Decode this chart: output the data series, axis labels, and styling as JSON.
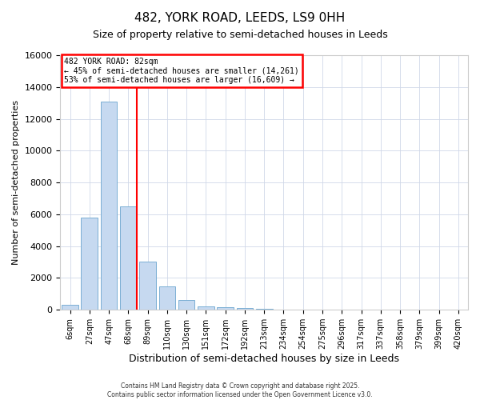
{
  "title": "482, YORK ROAD, LEEDS, LS9 0HH",
  "subtitle": "Size of property relative to semi-detached houses in Leeds",
  "xlabel": "Distribution of semi-detached houses by size in Leeds",
  "ylabel": "Number of semi-detached properties",
  "bin_labels": [
    "6sqm",
    "27sqm",
    "47sqm",
    "68sqm",
    "89sqm",
    "110sqm",
    "130sqm",
    "151sqm",
    "172sqm",
    "192sqm",
    "213sqm",
    "234sqm",
    "254sqm",
    "275sqm",
    "296sqm",
    "317sqm",
    "337sqm",
    "358sqm",
    "379sqm",
    "399sqm",
    "420sqm"
  ],
  "bar_values": [
    300,
    5800,
    13100,
    6500,
    3050,
    1450,
    600,
    200,
    150,
    100,
    50,
    30,
    20,
    10,
    5,
    3,
    2,
    1,
    0,
    0,
    0
  ],
  "bar_color": "#c6d9f0",
  "bar_edge_color": "#7bafd4",
  "vline_color": "red",
  "vline_pos": 3.45,
  "ylim": [
    0,
    16000
  ],
  "yticks": [
    0,
    2000,
    4000,
    6000,
    8000,
    10000,
    12000,
    14000,
    16000
  ],
  "annotation_title": "482 YORK ROAD: 82sqm",
  "annotation_line1": "← 45% of semi-detached houses are smaller (14,261)",
  "annotation_line2": "53% of semi-detached houses are larger (16,609) →",
  "annotation_box_color": "red",
  "footer1": "Contains HM Land Registry data © Crown copyright and database right 2025.",
  "footer2": "Contains public sector information licensed under the Open Government Licence v3.0.",
  "background_color": "#ffffff",
  "plot_bg_color": "#ffffff",
  "grid_color": "#d0d8e8"
}
